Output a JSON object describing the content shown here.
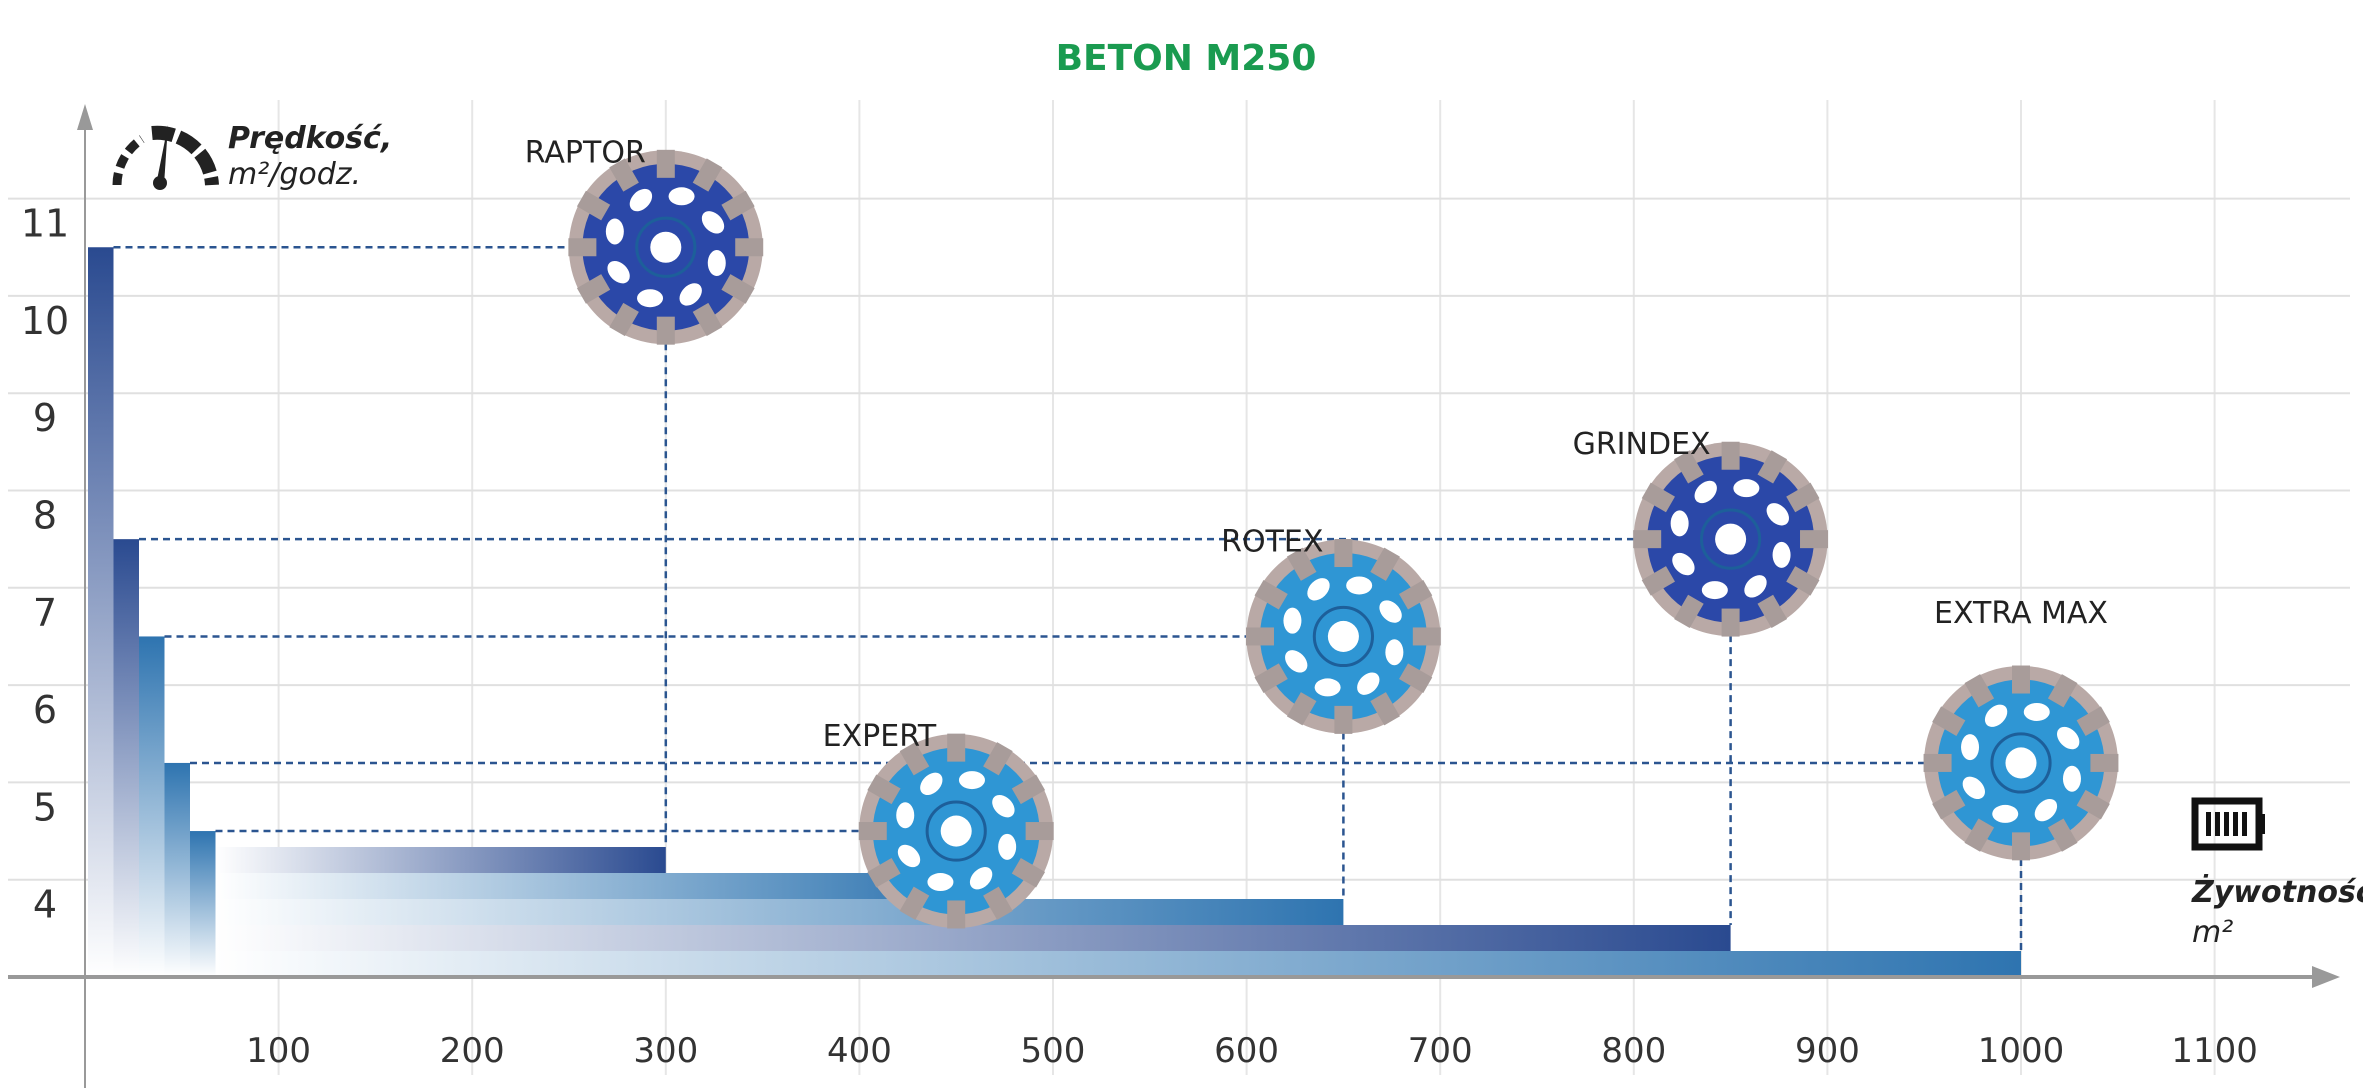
{
  "chart_data": {
    "type": "bar",
    "title": "BETON M250",
    "ylabel": "Prędkość,",
    "ylabel_unit": "m²/godz.",
    "xlabel": "Żywotność,",
    "xlabel_unit": "m²",
    "xlim": [
      0,
      1150
    ],
    "ylim": [
      3,
      11.8
    ],
    "x_ticks": [
      100,
      200,
      300,
      400,
      500,
      600,
      700,
      800,
      900,
      1000,
      1100
    ],
    "y_ticks": [
      4,
      5,
      6,
      7,
      8,
      9,
      10,
      11
    ],
    "grid": true,
    "icons": {
      "y_axis": "speedometer-icon",
      "x_axis": "battery-icon"
    },
    "products": [
      {
        "name": "RAPTOR",
        "life": 300,
        "speed": 10.5,
        "color": "#2a4a90",
        "disk": "#2b48a8"
      },
      {
        "name": "EXPERT",
        "life": 450,
        "speed": 4.5,
        "color": "#2e74b0",
        "disk": "#2f96d4"
      },
      {
        "name": "ROTEX",
        "life": 650,
        "speed": 6.5,
        "color": "#2e74b0",
        "disk": "#2f96d4"
      },
      {
        "name": "GRINDEX",
        "life": 850,
        "speed": 7.5,
        "color": "#2a4a90",
        "disk": "#2b48a8"
      },
      {
        "name": "EXTRA MAX",
        "life": 1000,
        "speed": 5.2,
        "color": "#2e74b0",
        "disk": "#2f96d4"
      }
    ]
  }
}
